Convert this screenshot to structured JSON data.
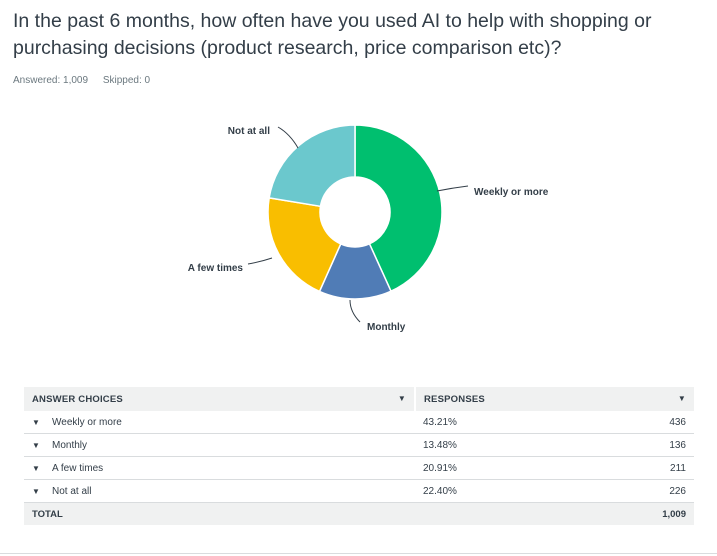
{
  "question": "In the past 6 months, how often have you used AI to help with shopping or purchasing decisions (product research, price comparison etc)?",
  "answered": "Answered: 1,009",
  "skipped": "Skipped: 0",
  "chart_data": {
    "type": "pie",
    "variant": "donut",
    "categories": [
      "Weekly or more",
      "Monthly",
      "A few times",
      "Not at all"
    ],
    "values": [
      43.21,
      13.48,
      20.91,
      22.4
    ],
    "colors": [
      "#00bf6f",
      "#507cb6",
      "#f9be00",
      "#6bc8cd"
    ],
    "start_angle": "12 o'clock",
    "direction": "clockwise",
    "title": ""
  },
  "table": {
    "headers": [
      "ANSWER CHOICES",
      "RESPONSES"
    ],
    "rows": [
      {
        "choice": "Weekly or more",
        "percent": "43.21%",
        "count": "436"
      },
      {
        "choice": "Monthly",
        "percent": "13.48%",
        "count": "136"
      },
      {
        "choice": "A few times",
        "percent": "20.91%",
        "count": "211"
      },
      {
        "choice": "Not at all",
        "percent": "22.40%",
        "count": "226"
      }
    ],
    "total_label": "TOTAL",
    "total_value": "1,009"
  },
  "icons": {
    "header_caret": "caret-down-icon",
    "row_arrow": "caret-down-icon"
  }
}
